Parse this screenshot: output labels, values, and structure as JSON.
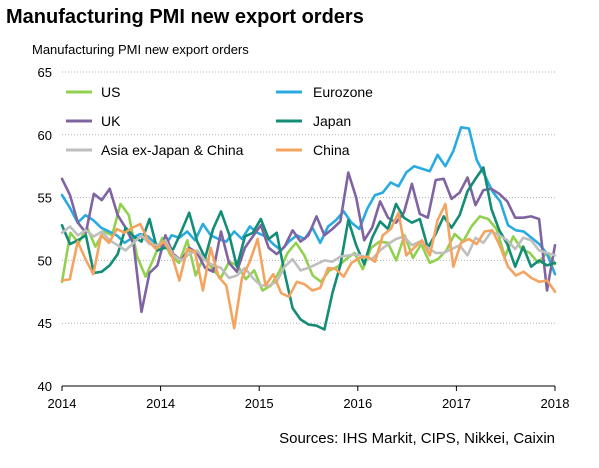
{
  "chart_data": {
    "type": "line",
    "title": "Manufacturing PMI new export orders",
    "subtitle": "Manufacturing PMI new export orders",
    "ylim": [
      40,
      65
    ],
    "yticks": [
      40,
      45,
      50,
      55,
      60,
      65
    ],
    "xlim": [
      0,
      50
    ],
    "xticks": [
      {
        "month": 0,
        "label": "2014"
      },
      {
        "month": 10,
        "label": "2014"
      },
      {
        "month": 20,
        "label": "2015"
      },
      {
        "month": 30,
        "label": "2016"
      },
      {
        "month": 40,
        "label": "2017"
      },
      {
        "month": 50,
        "label": "2018"
      }
    ],
    "x_unit": "months",
    "gridlines": "y",
    "legend_position": "top",
    "series": [
      {
        "name": "US",
        "color": "#92d050",
        "values": [
          48.3,
          52.2,
          51.4,
          52.6,
          51.1,
          52.3,
          52.0,
          54.5,
          53.6,
          50.3,
          48.7,
          50.2,
          51.8,
          50.4,
          49.8,
          51.6,
          48.8,
          50.4,
          49.3,
          48.6,
          49.9,
          49.6,
          48.5,
          49.2,
          47.6,
          48.0,
          49.1,
          50.6,
          51.4,
          50.4,
          48.8,
          48.3,
          49.2,
          49.5,
          50.1,
          50.6,
          49.3,
          51.0,
          51.5,
          51.4,
          50.0,
          52.0,
          50.2,
          51.3,
          49.8,
          50.1,
          50.8,
          52.1,
          51.5,
          52.7,
          53.5,
          53.3,
          52.5,
          50.3,
          51.9,
          50.9,
          50.6,
          49.8,
          50.6,
          49.7
        ]
      },
      {
        "name": "Eurozone",
        "color": "#29abe2",
        "values": [
          55.2,
          54.2,
          53.0,
          53.6,
          53.2,
          52.6,
          52.3,
          52.0,
          51.4,
          51.8,
          52.1,
          51.9,
          51.3,
          51.0,
          52.0,
          51.8,
          52.3,
          51.6,
          52.9,
          52.0,
          51.7,
          51.5,
          52.3,
          51.7,
          52.7,
          52.2,
          51.9,
          51.3,
          50.8,
          51.5,
          52.0,
          51.7,
          52.6,
          51.4,
          52.7,
          53.2,
          53.9,
          53.0,
          52.5,
          54.1,
          55.2,
          55.4,
          56.2,
          55.9,
          57.0,
          57.5,
          57.3,
          57.1,
          58.4,
          57.5,
          58.7,
          60.6,
          60.5,
          58.0,
          56.8,
          55.5,
          54.7,
          52.8,
          52.4,
          52.3,
          51.8,
          51.3,
          50.5,
          48.9
        ]
      },
      {
        "name": "UK",
        "color": "#8064a2",
        "values": [
          56.5,
          55.2,
          53.0,
          52.2,
          55.3,
          54.8,
          55.7,
          53.6,
          52.6,
          51.3,
          45.9,
          49.0,
          49.6,
          52.0,
          50.5,
          50.0,
          51.0,
          50.6,
          49.4,
          49.1,
          52.3,
          49.8,
          49.1,
          51.0,
          51.9,
          52.8,
          51.0,
          50.5,
          51.1,
          52.4,
          51.5,
          52.0,
          53.5,
          52.0,
          52.5,
          53.1,
          57.0,
          55.0,
          51.6,
          52.6,
          54.7,
          53.4,
          53.0,
          53.8,
          56.1,
          53.7,
          53.4,
          56.4,
          56.5,
          54.9,
          55.4,
          56.6,
          54.4,
          55.6,
          55.7,
          55.3,
          54.7,
          53.4,
          53.4,
          53.5,
          53.3,
          47.6,
          51.2
        ]
      },
      {
        "name": "Japan",
        "color": "#138d75",
        "values": [
          52.8,
          51.3,
          51.6,
          52.0,
          49.0,
          49.1,
          49.6,
          50.5,
          52.6,
          51.9,
          51.5,
          53.3,
          50.8,
          51.0,
          50.9,
          52.3,
          53.8,
          51.5,
          50.2,
          52.5,
          53.9,
          52.1,
          49.5,
          51.9,
          52.2,
          53.3,
          51.7,
          52.2,
          49.0,
          46.2,
          45.3,
          44.9,
          44.8,
          44.5,
          47.4,
          49.6,
          53.2,
          51.2,
          49.7,
          51.8,
          53.1,
          52.5,
          54.5,
          53.4,
          53.0,
          53.3,
          51.0,
          52.1,
          53.5,
          52.6,
          53.6,
          55.5,
          56.5,
          57.4,
          54.1,
          52.4,
          51.3,
          49.5,
          51.1,
          49.5,
          50.0,
          49.6,
          49.8
        ]
      },
      {
        "name": "Asia ex-Japan & China",
        "color": "#bfbfbf",
        "values": [
          52.2,
          52.7,
          52.0,
          52.4,
          51.9,
          52.3,
          51.6,
          51.2,
          50.8,
          51.4,
          52.0,
          51.3,
          51.2,
          51.6,
          50.4,
          50.0,
          50.5,
          50.8,
          50.0,
          49.6,
          49.4,
          48.6,
          48.8,
          49.4,
          48.6,
          48.0,
          48.0,
          48.3,
          49.5,
          50.1,
          49.2,
          49.4,
          49.7,
          50.0,
          49.9,
          50.3,
          50.4,
          50.5,
          50.3,
          50.1,
          50.8,
          51.3,
          51.7,
          51.9,
          51.2,
          51.5,
          51.0,
          50.6,
          50.6,
          50.9,
          51.2,
          50.4,
          51.8,
          51.4,
          52.3,
          52.0,
          51.6,
          50.9,
          51.8,
          51.6,
          50.8,
          50.6,
          50.4
        ]
      },
      {
        "name": "China",
        "color": "#f4a460",
        "values": [
          48.4,
          48.5,
          51.5,
          50.1,
          48.9,
          52.0,
          51.4,
          52.5,
          52.2,
          52.6,
          52.9,
          51.6,
          50.9,
          51.5,
          50.5,
          48.4,
          50.9,
          50.7,
          47.6,
          51.0,
          48.7,
          48.0,
          44.6,
          48.6,
          49.9,
          51.7,
          48.0,
          48.9,
          47.4,
          47.1,
          48.3,
          48.1,
          47.6,
          47.8,
          49.4,
          49.3,
          48.7,
          49.8,
          50.2,
          50.3,
          49.9,
          52.0,
          52.5,
          53.8,
          50.4,
          51.0,
          51.6,
          50.4,
          53.2,
          54.5,
          49.5,
          51.4,
          51.7,
          51.3,
          52.3,
          52.4,
          51.1,
          49.5,
          48.8,
          49.1,
          48.6,
          48.3,
          48.4,
          47.5
        ]
      }
    ]
  },
  "source": "Sources: IHS Markit, CIPS, Nikkei, Caixin"
}
